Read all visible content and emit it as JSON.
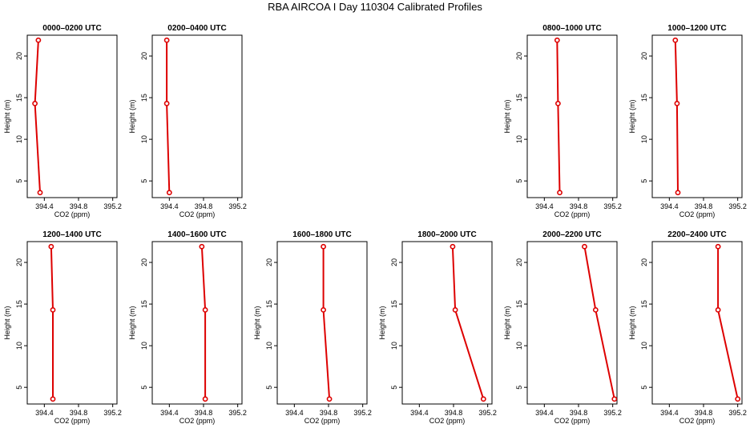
{
  "title": "RBA AIRCOA I  Day 110304  Calibrated Profiles",
  "chart_data": [
    {
      "type": "line",
      "title": "0000–0200 UTC",
      "xlabel": "CO2 (ppm)",
      "ylabel": "Height (m)",
      "xlim": [
        394.2,
        395.25
      ],
      "ylim": [
        3,
        22.5
      ],
      "xticks": [
        "394.4",
        "394.8",
        "395.2"
      ],
      "yticks": [
        "5",
        "10",
        "15",
        "20"
      ],
      "x": [
        394.33,
        394.29,
        394.35
      ],
      "y": [
        21.9,
        14.3,
        3.6
      ]
    },
    {
      "type": "line",
      "title": "0200–0400 UTC",
      "xlabel": "CO2 (ppm)",
      "ylabel": "Height (m)",
      "xlim": [
        394.2,
        395.25
      ],
      "ylim": [
        3,
        22.5
      ],
      "xticks": [
        "394.4",
        "394.8",
        "395.2"
      ],
      "yticks": [
        "5",
        "10",
        "15",
        "20"
      ],
      "x": [
        394.37,
        394.37,
        394.4
      ],
      "y": [
        21.9,
        14.3,
        3.6
      ]
    },
    {
      "type": "line",
      "title": "0800–1000 UTC",
      "xlabel": "CO2 (ppm)",
      "ylabel": "Height (m)",
      "xlim": [
        394.2,
        395.25
      ],
      "ylim": [
        3,
        22.5
      ],
      "xticks": [
        "394.4",
        "394.8",
        "395.2"
      ],
      "yticks": [
        "5",
        "10",
        "15",
        "20"
      ],
      "x": [
        394.55,
        394.56,
        394.58
      ],
      "y": [
        21.9,
        14.3,
        3.6
      ]
    },
    {
      "type": "line",
      "title": "1000–1200 UTC",
      "xlabel": "CO2 (ppm)",
      "ylabel": "Height (m)",
      "xlim": [
        394.2,
        395.25
      ],
      "ylim": [
        3,
        22.5
      ],
      "xticks": [
        "394.4",
        "394.8",
        "395.2"
      ],
      "yticks": [
        "5",
        "10",
        "15",
        "20"
      ],
      "x": [
        394.47,
        394.49,
        394.5
      ],
      "y": [
        21.9,
        14.3,
        3.6
      ]
    },
    {
      "type": "line",
      "title": "1200–1400 UTC",
      "xlabel": "CO2 (ppm)",
      "ylabel": "Height (m)",
      "xlim": [
        394.2,
        395.25
      ],
      "ylim": [
        3,
        22.5
      ],
      "xticks": [
        "394.4",
        "394.8",
        "395.2"
      ],
      "yticks": [
        "5",
        "10",
        "15",
        "20"
      ],
      "x": [
        394.48,
        394.5,
        394.5
      ],
      "y": [
        21.9,
        14.3,
        3.6
      ]
    },
    {
      "type": "line",
      "title": "1400–1600 UTC",
      "xlabel": "CO2 (ppm)",
      "ylabel": "Height (m)",
      "xlim": [
        394.2,
        395.25
      ],
      "ylim": [
        3,
        22.5
      ],
      "xticks": [
        "394.4",
        "394.8",
        "395.2"
      ],
      "yticks": [
        "5",
        "10",
        "15",
        "20"
      ],
      "x": [
        394.78,
        394.82,
        394.82
      ],
      "y": [
        21.9,
        14.3,
        3.6
      ]
    },
    {
      "type": "line",
      "title": "1600–1800 UTC",
      "xlabel": "CO2 (ppm)",
      "ylabel": "Height (m)",
      "xlim": [
        394.2,
        395.25
      ],
      "ylim": [
        3,
        22.5
      ],
      "xticks": [
        "394.4",
        "394.8",
        "395.2"
      ],
      "yticks": [
        "5",
        "10",
        "15",
        "20"
      ],
      "x": [
        394.74,
        394.74,
        394.81
      ],
      "y": [
        21.9,
        14.3,
        3.6
      ]
    },
    {
      "type": "line",
      "title": "1800–2000 UTC",
      "xlabel": "CO2 (ppm)",
      "ylabel": "Height (m)",
      "xlim": [
        394.2,
        395.25
      ],
      "ylim": [
        3,
        22.5
      ],
      "xticks": [
        "394.4",
        "394.8",
        "395.2"
      ],
      "yticks": [
        "5",
        "10",
        "15",
        "20"
      ],
      "x": [
        394.79,
        394.82,
        395.15
      ],
      "y": [
        21.9,
        14.3,
        3.6
      ]
    },
    {
      "type": "line",
      "title": "2000–2200 UTC",
      "xlabel": "CO2 (ppm)",
      "ylabel": "Height (m)",
      "xlim": [
        394.2,
        395.25
      ],
      "ylim": [
        3,
        22.5
      ],
      "xticks": [
        "394.4",
        "394.8",
        "395.2"
      ],
      "yticks": [
        "5",
        "10",
        "15",
        "20"
      ],
      "x": [
        394.87,
        395.0,
        395.22
      ],
      "y": [
        21.9,
        14.3,
        3.6
      ]
    },
    {
      "type": "line",
      "title": "2200–2400 UTC",
      "xlabel": "CO2 (ppm)",
      "ylabel": "Height (m)",
      "xlim": [
        394.2,
        395.25
      ],
      "ylim": [
        3,
        22.5
      ],
      "xticks": [
        "394.4",
        "394.8",
        "395.2"
      ],
      "yticks": [
        "5",
        "10",
        "15",
        "20"
      ],
      "x": [
        394.97,
        394.97,
        395.2
      ],
      "y": [
        21.9,
        14.3,
        3.6
      ]
    }
  ]
}
